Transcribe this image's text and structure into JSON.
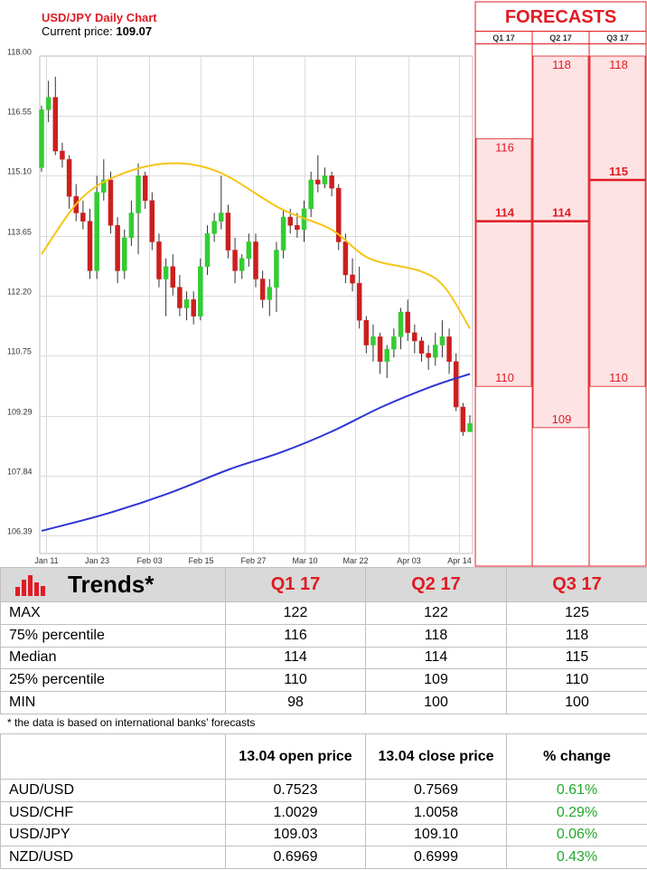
{
  "header": {
    "title": "USD/JPY Daily Chart",
    "price_label": "Current price: ",
    "price_value": "109.07"
  },
  "forecast_panel": {
    "title": "FORECASTS",
    "columns": [
      "Q1 17",
      "Q2 17",
      "Q3 17"
    ],
    "bands": [
      {
        "quarter": "Q1 17",
        "p75": 116,
        "median": 114,
        "p25": 110
      },
      {
        "quarter": "Q2 17",
        "p75": 118,
        "median": 114,
        "p25": 109
      },
      {
        "quarter": "Q3 17",
        "p75": 118,
        "median": 115,
        "p25": 110
      }
    ]
  },
  "chart_data": {
    "type": "candlestick",
    "title": "USD/JPY Daily Chart",
    "y_ticks": [
      "118.00",
      "116.55",
      "115.10",
      "113.65",
      "112.20",
      "110.75",
      "109.29",
      "107.84",
      "106.39"
    ],
    "ylim": [
      106.1,
      118.0
    ],
    "x_ticks": [
      "Jan 11",
      "Jan 23",
      "Feb 03",
      "Feb 15",
      "Feb 27",
      "Mar 10",
      "Mar 22",
      "Apr 03",
      "Apr 14"
    ],
    "grid": true,
    "colors": {
      "up": "#33cc33",
      "down": "#cc1f1f",
      "ma_short": "#f5c518",
      "ma_long": "#2f35d6"
    },
    "candles": [
      [
        115.3,
        116.8,
        115.2,
        116.7
      ],
      [
        116.7,
        117.4,
        116.4,
        117.0
      ],
      [
        117.0,
        117.5,
        115.6,
        115.7
      ],
      [
        115.7,
        115.9,
        115.3,
        115.5
      ],
      [
        115.5,
        115.6,
        114.3,
        114.6
      ],
      [
        114.6,
        114.9,
        114.0,
        114.2
      ],
      [
        114.2,
        114.5,
        113.8,
        114.0
      ],
      [
        114.0,
        114.3,
        112.6,
        112.8
      ],
      [
        112.8,
        115.1,
        112.6,
        114.7
      ],
      [
        114.7,
        115.5,
        114.5,
        115.0
      ],
      [
        115.0,
        115.2,
        113.7,
        113.9
      ],
      [
        113.9,
        114.1,
        112.5,
        112.8
      ],
      [
        112.8,
        113.8,
        112.6,
        113.6
      ],
      [
        113.6,
        114.5,
        113.4,
        114.2
      ],
      [
        114.2,
        115.4,
        113.2,
        115.1
      ],
      [
        115.1,
        115.2,
        114.3,
        114.5
      ],
      [
        114.5,
        114.7,
        113.3,
        113.5
      ],
      [
        113.5,
        113.7,
        112.4,
        112.6
      ],
      [
        112.6,
        113.1,
        111.7,
        112.9
      ],
      [
        112.9,
        113.2,
        112.2,
        112.4
      ],
      [
        112.4,
        112.7,
        111.7,
        111.9
      ],
      [
        111.9,
        112.3,
        111.6,
        112.1
      ],
      [
        112.1,
        112.3,
        111.5,
        111.7
      ],
      [
        111.7,
        113.1,
        111.6,
        112.9
      ],
      [
        112.9,
        113.9,
        112.7,
        113.7
      ],
      [
        113.7,
        114.2,
        113.5,
        114.0
      ],
      [
        114.0,
        115.1,
        113.8,
        114.2
      ],
      [
        114.2,
        114.4,
        113.1,
        113.3
      ],
      [
        113.3,
        113.6,
        112.5,
        112.8
      ],
      [
        112.8,
        113.2,
        112.6,
        113.1
      ],
      [
        113.1,
        113.7,
        112.9,
        113.5
      ],
      [
        113.5,
        113.7,
        112.4,
        112.6
      ],
      [
        112.6,
        112.8,
        111.9,
        112.1
      ],
      [
        112.1,
        112.6,
        111.7,
        112.4
      ],
      [
        112.4,
        113.5,
        111.8,
        113.3
      ],
      [
        113.3,
        114.3,
        113.1,
        114.1
      ],
      [
        114.1,
        114.3,
        113.7,
        113.9
      ],
      [
        113.9,
        114.2,
        113.6,
        113.8
      ],
      [
        113.8,
        114.5,
        113.5,
        114.3
      ],
      [
        114.3,
        115.2,
        114.1,
        115.0
      ],
      [
        115.0,
        115.6,
        114.7,
        114.9
      ],
      [
        114.9,
        115.3,
        114.8,
        115.1
      ],
      [
        115.1,
        115.2,
        114.6,
        114.8
      ],
      [
        114.8,
        114.9,
        113.3,
        113.5
      ],
      [
        113.5,
        113.7,
        112.5,
        112.7
      ],
      [
        112.7,
        113.1,
        112.3,
        112.5
      ],
      [
        112.5,
        112.9,
        111.4,
        111.6
      ],
      [
        111.6,
        111.7,
        110.8,
        111.0
      ],
      [
        111.0,
        111.5,
        110.6,
        111.2
      ],
      [
        111.2,
        111.3,
        110.3,
        110.6
      ],
      [
        110.6,
        111.0,
        110.2,
        110.9
      ],
      [
        110.9,
        111.4,
        110.7,
        111.2
      ],
      [
        111.2,
        111.9,
        110.9,
        111.8
      ],
      [
        111.8,
        112.1,
        111.1,
        111.3
      ],
      [
        111.3,
        111.5,
        110.8,
        111.1
      ],
      [
        111.1,
        111.2,
        110.6,
        110.8
      ],
      [
        110.8,
        111.0,
        110.4,
        110.7
      ],
      [
        110.7,
        111.3,
        110.5,
        111.0
      ],
      [
        111.0,
        111.6,
        110.7,
        111.2
      ],
      [
        111.2,
        111.4,
        110.3,
        110.6
      ],
      [
        110.6,
        110.8,
        109.4,
        109.5
      ],
      [
        109.5,
        109.6,
        108.8,
        108.9
      ],
      [
        108.9,
        109.3,
        108.9,
        109.1
      ]
    ],
    "ma_short": [
      [
        0,
        113.2
      ],
      [
        6,
        114.5
      ],
      [
        12,
        115.1
      ],
      [
        20,
        115.4
      ],
      [
        28,
        115.2
      ],
      [
        38,
        114.3
      ],
      [
        46,
        113.8
      ],
      [
        52,
        113.1
      ],
      [
        60,
        112.8
      ],
      [
        64,
        112.4
      ],
      [
        68,
        111.4
      ]
    ],
    "ma_long": [
      [
        0,
        106.5
      ],
      [
        10,
        106.9
      ],
      [
        20,
        107.4
      ],
      [
        30,
        108.0
      ],
      [
        38,
        108.4
      ],
      [
        46,
        108.9
      ],
      [
        54,
        109.5
      ],
      [
        62,
        110.0
      ],
      [
        68,
        110.3
      ]
    ]
  },
  "trends_table": {
    "title": "Trends*",
    "columns": [
      "Q1 17",
      "Q2 17",
      "Q3 17"
    ],
    "rows": [
      {
        "label": "MAX",
        "values": [
          "122",
          "122",
          "125"
        ]
      },
      {
        "label": "75% percentile",
        "values": [
          "116",
          "118",
          "118"
        ]
      },
      {
        "label": "Median",
        "values": [
          "114",
          "114",
          "115"
        ]
      },
      {
        "label": "25% percentile",
        "values": [
          "110",
          "109",
          "110"
        ]
      },
      {
        "label": "MIN",
        "values": [
          "98",
          "100",
          "100"
        ]
      }
    ],
    "note": "* the data is based on international banks’ forecasts"
  },
  "fx_table": {
    "columns": [
      "",
      "13.04 open price",
      "13.04 close price",
      "% change"
    ],
    "rows": [
      {
        "pair": "AUD/USD",
        "open": "0.7523",
        "close": "0.7569",
        "change": "0.61%"
      },
      {
        "pair": "USD/CHF",
        "open": "1.0029",
        "close": "1.0058",
        "change": "0.29%"
      },
      {
        "pair": "USD/JPY",
        "open": "109.03",
        "close": "109.10",
        "change": "0.06%"
      },
      {
        "pair": "NZD/USD",
        "open": "0.6969",
        "close": "0.6999",
        "change": "0.43%"
      }
    ]
  }
}
